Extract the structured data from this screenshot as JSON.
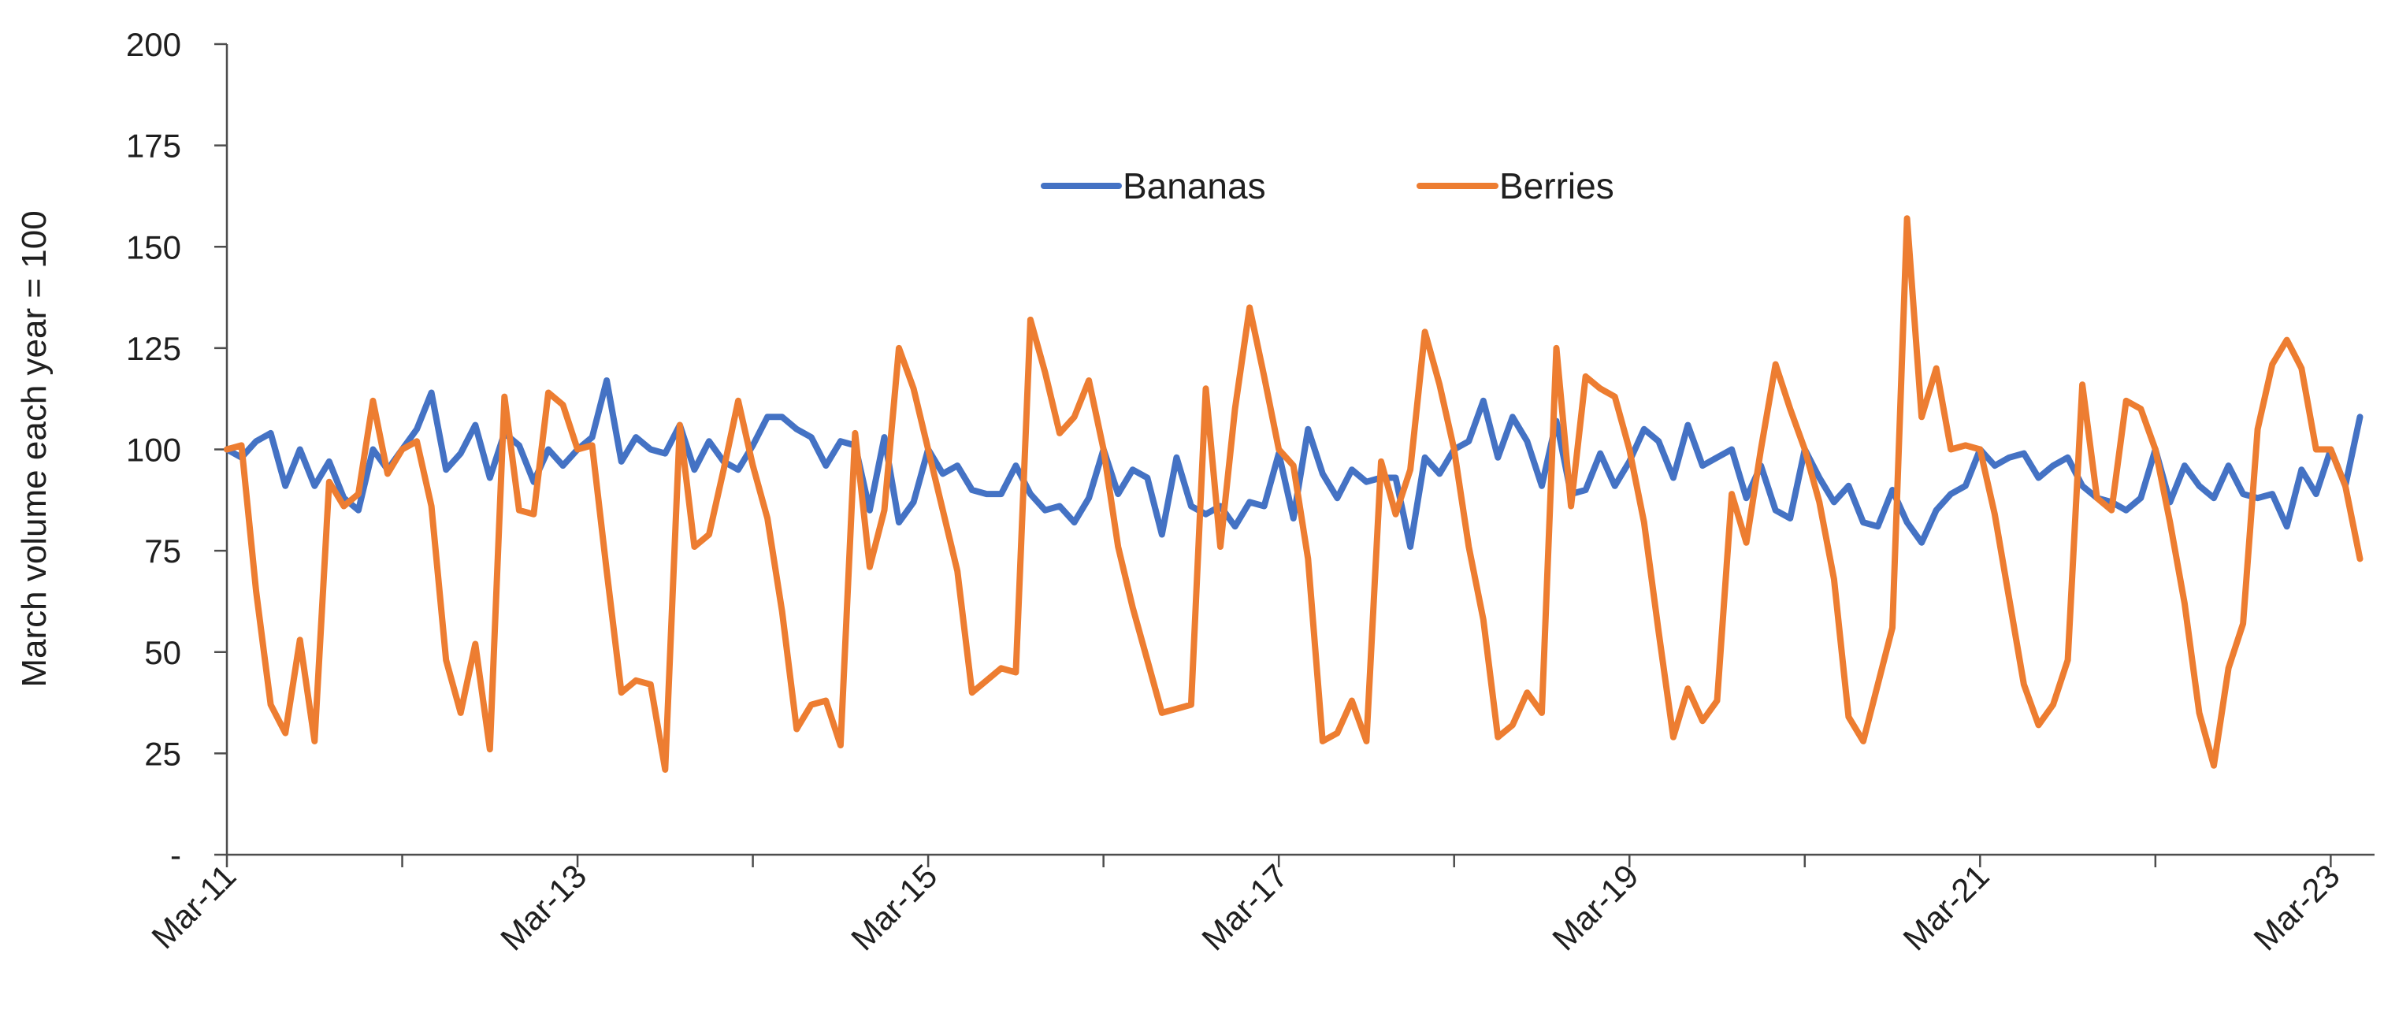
{
  "chart_data": {
    "type": "line",
    "title": "",
    "xlabel": "",
    "ylabel": "March volume each year = 100",
    "ylim": [
      0,
      200
    ],
    "y_ticks": [
      0,
      25,
      50,
      75,
      100,
      125,
      150,
      175,
      200
    ],
    "y_tick_labels": [
      "-",
      "25",
      "50",
      "75",
      "100",
      "125",
      "150",
      "175",
      "200"
    ],
    "xlim": [
      "2011-03",
      "2023-06"
    ],
    "x_ticks": [
      "2011-03",
      "2012-03",
      "2013-03",
      "2014-03",
      "2015-03",
      "2016-03",
      "2017-03",
      "2018-03",
      "2019-03",
      "2020-03",
      "2021-03",
      "2022-03",
      "2023-03"
    ],
    "x_tick_labels": [
      "Mar-11",
      "Mar-13",
      "Mar-15",
      "Mar-17",
      "Mar-19",
      "Mar-21",
      "Mar-23"
    ],
    "x_tick_label_dates": [
      "2011-03",
      "2013-03",
      "2015-03",
      "2017-03",
      "2019-03",
      "2021-03",
      "2023-03"
    ],
    "grid": false,
    "legend": "top-center",
    "colors": {
      "Bananas": "#4472c4",
      "Berries": "#ed7d31"
    },
    "series": [
      {
        "name": "Bananas",
        "x_start": "2011-03",
        "frequency": "monthly",
        "values": [
          100,
          98,
          102,
          104,
          91,
          100,
          91,
          97,
          88,
          85,
          100,
          95,
          100,
          105,
          114,
          95,
          99,
          106,
          93,
          104,
          101,
          92,
          100,
          96,
          100,
          103,
          117,
          97,
          103,
          100,
          99,
          106,
          95,
          102,
          97,
          95,
          101,
          108,
          108,
          105,
          103,
          96,
          102,
          101,
          85,
          103,
          82,
          87,
          100,
          94,
          96,
          90,
          89,
          89,
          96,
          89,
          85,
          86,
          82,
          88,
          100,
          89,
          95,
          93,
          79,
          98,
          86,
          84,
          86,
          81,
          87,
          86,
          99,
          83,
          105,
          94,
          88,
          95,
          92,
          93,
          93,
          76,
          98,
          94,
          100,
          102,
          112,
          98,
          108,
          102,
          91,
          107,
          89,
          90,
          99,
          91,
          97,
          105,
          102,
          93,
          106,
          96,
          98,
          100,
          88,
          96,
          85,
          83,
          100,
          93,
          87,
          91,
          82,
          81,
          90,
          82,
          77,
          85,
          89,
          91,
          100,
          96,
          98,
          99,
          93,
          96,
          98,
          91,
          88,
          87,
          85,
          88,
          100,
          87,
          96,
          91,
          88,
          96,
          89,
          88,
          89,
          81,
          95,
          89,
          100,
          91,
          108
        ]
      },
      {
        "name": "Berries",
        "x_start": "2011-03",
        "frequency": "monthly",
        "values": [
          100,
          101,
          65,
          37,
          30,
          53,
          28,
          92,
          86,
          89,
          112,
          94,
          100,
          102,
          86,
          48,
          35,
          52,
          26,
          113,
          85,
          84,
          114,
          111,
          100,
          101,
          70,
          40,
          43,
          42,
          21,
          106,
          76,
          79,
          95,
          112,
          96,
          83,
          60,
          31,
          37,
          38,
          27,
          104,
          71,
          85,
          125,
          115,
          100,
          85,
          70,
          40,
          43,
          46,
          45,
          132,
          119,
          104,
          108,
          117,
          100,
          76,
          61,
          48,
          35,
          36,
          37,
          115,
          76,
          110,
          135,
          118,
          100,
          96,
          73,
          28,
          30,
          38,
          28,
          97,
          84,
          95,
          129,
          116,
          100,
          76,
          58,
          29,
          32,
          40,
          35,
          125,
          86,
          118,
          115,
          113,
          100,
          82,
          55,
          29,
          41,
          33,
          38,
          89,
          77,
          100,
          121,
          110,
          100,
          87,
          68,
          34,
          28,
          42,
          56,
          157,
          108,
          120,
          100,
          101,
          100,
          84,
          63,
          42,
          32,
          37,
          48,
          116,
          88,
          85,
          112,
          110,
          100,
          82,
          62,
          35,
          22,
          46,
          57,
          105,
          121,
          127,
          120,
          100,
          100,
          91,
          73
        ]
      }
    ]
  }
}
